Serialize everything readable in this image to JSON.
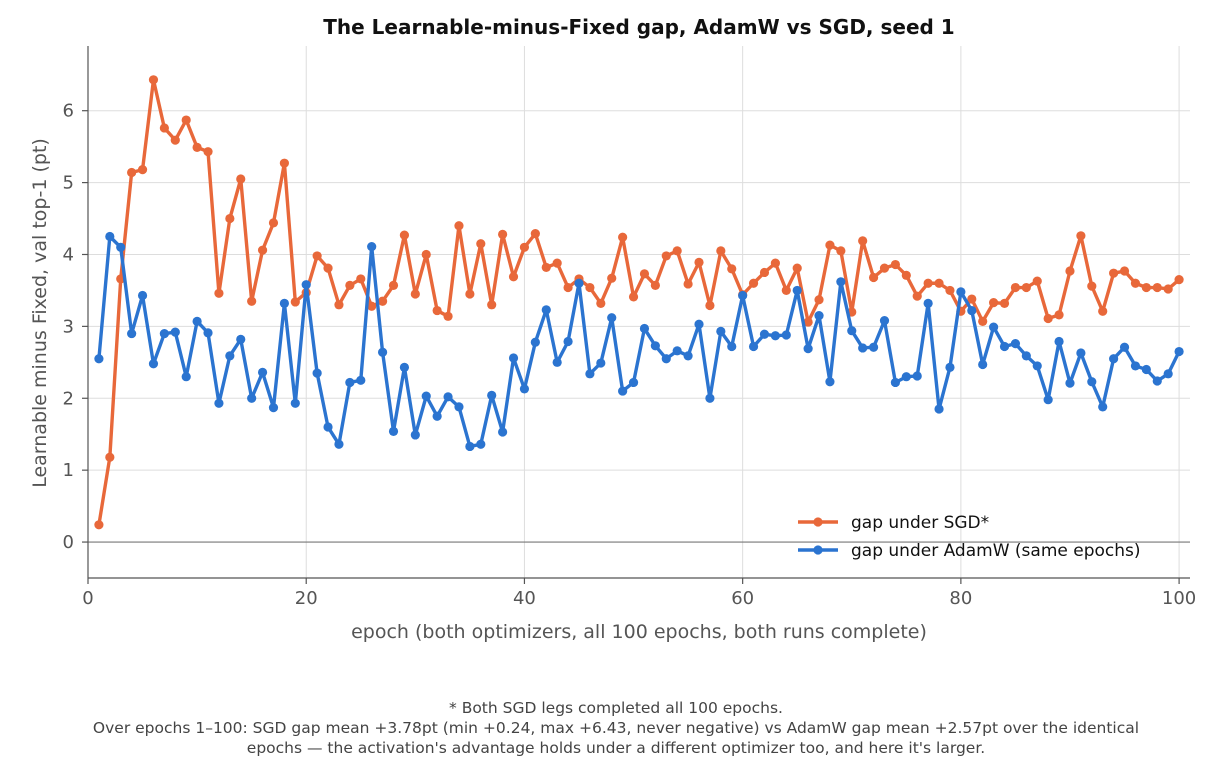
{
  "chart_data": {
    "type": "line",
    "title": "The Learnable-minus-Fixed gap, AdamW vs SGD, seed 1",
    "xlabel": "epoch (both optimizers, all 100 epochs, both runs complete)",
    "ylabel": "Learnable minus Fixed, val top-1 (pt)",
    "xlim": [
      0,
      101
    ],
    "ylim": [
      -0.5,
      6.9
    ],
    "xticks": [
      0,
      20,
      40,
      60,
      80,
      100
    ],
    "yticks": [
      0,
      1,
      2,
      3,
      4,
      5,
      6
    ],
    "grid": true,
    "zero_line": true,
    "legend_position": "lower-right",
    "series": [
      {
        "name": "gap under SGD*",
        "color": "#E8683A",
        "x": [
          1,
          2,
          3,
          4,
          5,
          6,
          7,
          8,
          9,
          10,
          11,
          12,
          13,
          14,
          15,
          16,
          17,
          18,
          19,
          20,
          21,
          22,
          23,
          24,
          25,
          26,
          27,
          28,
          29,
          30,
          31,
          32,
          33,
          34,
          35,
          36,
          37,
          38,
          39,
          40,
          41,
          42,
          43,
          44,
          45,
          46,
          47,
          48,
          49,
          50,
          51,
          52,
          53,
          54,
          55,
          56,
          57,
          58,
          59,
          60,
          61,
          62,
          63,
          64,
          65,
          66,
          67,
          68,
          69,
          70,
          71,
          72,
          73,
          74,
          75,
          76,
          77,
          78,
          79,
          80,
          81,
          82,
          83,
          84,
          85,
          86,
          87,
          88,
          89,
          90,
          91,
          92,
          93,
          94,
          95,
          96,
          97,
          98,
          99,
          100
        ],
        "values": [
          0.24,
          1.18,
          3.66,
          5.14,
          5.18,
          6.43,
          5.76,
          5.59,
          5.87,
          5.49,
          5.43,
          3.46,
          4.5,
          5.05,
          3.35,
          4.06,
          4.44,
          5.27,
          3.34,
          3.47,
          3.98,
          3.81,
          3.3,
          3.57,
          3.66,
          3.28,
          3.35,
          3.57,
          4.27,
          3.45,
          4.0,
          3.22,
          3.14,
          4.4,
          3.45,
          4.15,
          3.3,
          4.28,
          3.69,
          4.1,
          4.29,
          3.82,
          3.88,
          3.54,
          3.66,
          3.54,
          3.32,
          3.67,
          4.24,
          3.41,
          3.73,
          3.57,
          3.98,
          4.05,
          3.59,
          3.89,
          3.29,
          4.05,
          3.8,
          3.44,
          3.6,
          3.75,
          3.88,
          3.5,
          3.81,
          3.06,
          3.37,
          4.13,
          4.05,
          3.2,
          4.19,
          3.68,
          3.81,
          3.86,
          3.71,
          3.42,
          3.6,
          3.6,
          3.5,
          3.21,
          3.38,
          3.07,
          3.33,
          3.32,
          3.54,
          3.54,
          3.63,
          3.11,
          3.16,
          3.77,
          4.26,
          3.56,
          3.21,
          3.74,
          3.77,
          3.6,
          3.54,
          3.54,
          3.52,
          3.65
        ]
      },
      {
        "name": "gap under AdamW (same epochs)",
        "color": "#2B74D0",
        "x": [
          1,
          2,
          3,
          4,
          5,
          6,
          7,
          8,
          9,
          10,
          11,
          12,
          13,
          14,
          15,
          16,
          17,
          18,
          19,
          20,
          21,
          22,
          23,
          24,
          25,
          26,
          27,
          28,
          29,
          30,
          31,
          32,
          33,
          34,
          35,
          36,
          37,
          38,
          39,
          40,
          41,
          42,
          43,
          44,
          45,
          46,
          47,
          48,
          49,
          50,
          51,
          52,
          53,
          54,
          55,
          56,
          57,
          58,
          59,
          60,
          61,
          62,
          63,
          64,
          65,
          66,
          67,
          68,
          69,
          70,
          71,
          72,
          73,
          74,
          75,
          76,
          77,
          78,
          79,
          80,
          81,
          82,
          83,
          84,
          85,
          86,
          87,
          88,
          89,
          90,
          91,
          92,
          93,
          94,
          95,
          96,
          97,
          98,
          99,
          100
        ],
        "values": [
          2.55,
          4.25,
          4.1,
          2.9,
          3.43,
          2.48,
          2.9,
          2.92,
          2.3,
          3.07,
          2.91,
          1.93,
          2.59,
          2.82,
          2.0,
          2.36,
          1.87,
          3.32,
          1.93,
          3.58,
          2.35,
          1.6,
          1.36,
          2.22,
          2.25,
          4.11,
          2.64,
          1.54,
          2.43,
          1.49,
          2.03,
          1.75,
          2.02,
          1.88,
          1.33,
          1.36,
          2.04,
          1.53,
          2.56,
          2.13,
          2.78,
          3.23,
          2.5,
          2.79,
          3.6,
          2.34,
          2.49,
          3.12,
          2.1,
          2.22,
          2.97,
          2.73,
          2.55,
          2.66,
          2.59,
          3.03,
          2.0,
          2.93,
          2.72,
          3.43,
          2.72,
          2.89,
          2.87,
          2.88,
          3.5,
          2.69,
          3.15,
          2.23,
          3.62,
          2.94,
          2.7,
          2.71,
          3.08,
          2.22,
          2.3,
          2.31,
          3.32,
          1.85,
          2.43,
          3.48,
          3.22,
          2.47,
          2.99,
          2.72,
          2.76,
          2.59,
          2.45,
          1.98,
          2.79,
          2.21,
          2.63,
          2.23,
          1.88,
          2.55,
          2.71,
          2.45,
          2.4,
          2.24,
          2.34,
          2.65
        ]
      }
    ],
    "footnote": [
      "* Both SGD legs completed all 100 epochs.",
      "Over epochs 1–100: SGD gap mean +3.78pt (min +0.24, max +6.43, never negative) vs AdamW gap mean +2.57pt over the identical",
      "epochs — the activation's advantage holds under a different optimizer too, and here it's larger."
    ]
  }
}
